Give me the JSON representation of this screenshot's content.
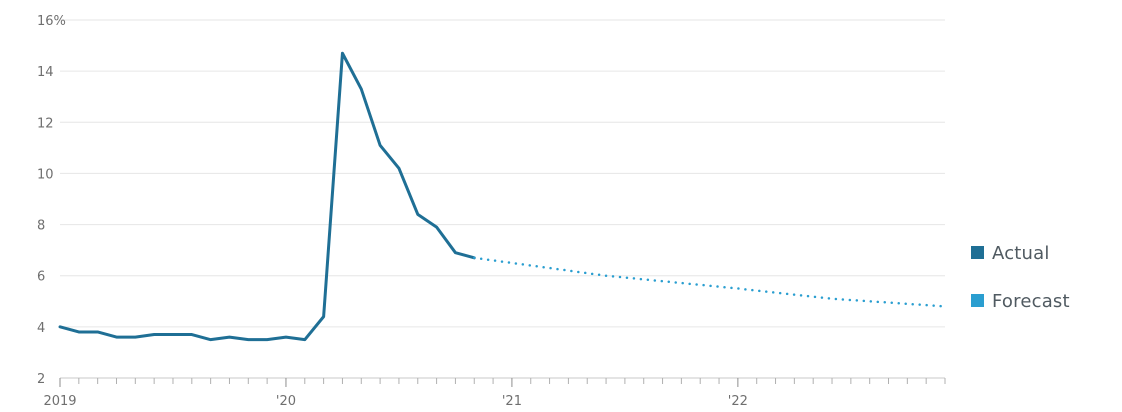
{
  "chart_data": {
    "type": "line",
    "title": "",
    "xlabel": "",
    "ylabel": "",
    "ylim": [
      2,
      16
    ],
    "y_ticks": [
      2,
      4,
      6,
      8,
      10,
      12,
      14,
      16
    ],
    "y_tick_labels": [
      "2",
      "4",
      "6",
      "8",
      "10",
      "12",
      "14",
      "16%"
    ],
    "x_range": [
      "2019-01",
      "2022-12"
    ],
    "x_ticks": [
      {
        "date": "2019-01",
        "label": "2019"
      },
      {
        "date": "2020-01",
        "label": "'20"
      },
      {
        "date": "2021-01",
        "label": "'21"
      },
      {
        "date": "2022-01",
        "label": "'22"
      }
    ],
    "grid": true,
    "legend": {
      "placement": "right",
      "items": [
        {
          "name": "Actual",
          "color": "#1f6f95"
        },
        {
          "name": "Forecast",
          "color": "#2a9ed0"
        }
      ]
    },
    "series": [
      {
        "name": "Actual",
        "color": "#1f6f95",
        "style": "solid",
        "points": [
          {
            "x": "2019-01",
            "y": 4.0
          },
          {
            "x": "2019-02",
            "y": 3.8
          },
          {
            "x": "2019-03",
            "y": 3.8
          },
          {
            "x": "2019-04",
            "y": 3.6
          },
          {
            "x": "2019-05",
            "y": 3.6
          },
          {
            "x": "2019-06",
            "y": 3.7
          },
          {
            "x": "2019-07",
            "y": 3.7
          },
          {
            "x": "2019-08",
            "y": 3.7
          },
          {
            "x": "2019-09",
            "y": 3.5
          },
          {
            "x": "2019-10",
            "y": 3.6
          },
          {
            "x": "2019-11",
            "y": 3.5
          },
          {
            "x": "2019-12",
            "y": 3.5
          },
          {
            "x": "2020-01",
            "y": 3.6
          },
          {
            "x": "2020-02",
            "y": 3.5
          },
          {
            "x": "2020-03",
            "y": 4.4
          },
          {
            "x": "2020-04",
            "y": 14.7
          },
          {
            "x": "2020-05",
            "y": 13.3
          },
          {
            "x": "2020-06",
            "y": 11.1
          },
          {
            "x": "2020-07",
            "y": 10.2
          },
          {
            "x": "2020-08",
            "y": 8.4
          },
          {
            "x": "2020-09",
            "y": 7.9
          },
          {
            "x": "2020-10",
            "y": 6.9
          },
          {
            "x": "2020-11",
            "y": 6.7
          }
        ]
      },
      {
        "name": "Forecast",
        "color": "#2a9ed0",
        "style": "dotted",
        "points": [
          {
            "x": "2020-11",
            "y": 6.7
          },
          {
            "x": "2021-06",
            "y": 6.0
          },
          {
            "x": "2022-01",
            "y": 5.5
          },
          {
            "x": "2022-06",
            "y": 5.1
          },
          {
            "x": "2022-12",
            "y": 4.8
          }
        ]
      }
    ]
  }
}
